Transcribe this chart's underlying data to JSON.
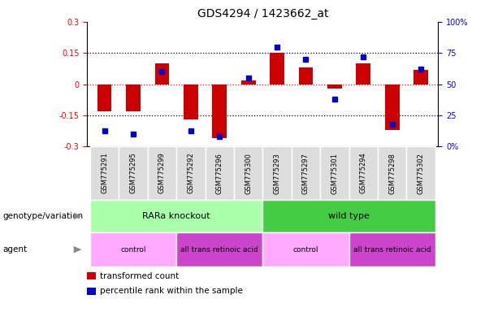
{
  "title": "GDS4294 / 1423662_at",
  "samples": [
    "GSM775291",
    "GSM775295",
    "GSM775299",
    "GSM775292",
    "GSM775296",
    "GSM775300",
    "GSM775293",
    "GSM775297",
    "GSM775301",
    "GSM775294",
    "GSM775298",
    "GSM775302"
  ],
  "bar_values": [
    -0.13,
    -0.13,
    0.1,
    -0.17,
    -0.26,
    0.02,
    0.15,
    0.08,
    -0.02,
    0.1,
    -0.22,
    0.07
  ],
  "dot_percentiles": [
    13,
    10,
    60,
    13,
    8,
    55,
    80,
    70,
    38,
    72,
    18,
    62
  ],
  "ylim_left": [
    -0.3,
    0.3
  ],
  "ylim_right": [
    0,
    100
  ],
  "bar_color": "#CC0000",
  "dot_color": "#0000CC",
  "hline_values": [
    0.15,
    0.0,
    -0.15
  ],
  "genotype_groups": [
    {
      "label": "RARa knockout",
      "start": 0,
      "end": 6,
      "color": "#AAFFAA"
    },
    {
      "label": "wild type",
      "start": 6,
      "end": 12,
      "color": "#44CC44"
    }
  ],
  "agent_groups": [
    {
      "label": "control",
      "start": 0,
      "end": 3,
      "color": "#FFAAFF"
    },
    {
      "label": "all trans retinoic acid",
      "start": 3,
      "end": 6,
      "color": "#CC44CC"
    },
    {
      "label": "control",
      "start": 6,
      "end": 9,
      "color": "#FFAAFF"
    },
    {
      "label": "all trans retinoic acid",
      "start": 9,
      "end": 12,
      "color": "#CC44CC"
    }
  ],
  "legend_items": [
    {
      "label": "transformed count",
      "color": "#CC0000"
    },
    {
      "label": "percentile rank within the sample",
      "color": "#0000CC"
    }
  ],
  "right_ticks": [
    0,
    25,
    50,
    75,
    100
  ],
  "right_tick_labels": [
    "0%",
    "25",
    "50",
    "75",
    "100%"
  ],
  "left_ticks": [
    -0.3,
    -0.15,
    0.0,
    0.15,
    0.3
  ],
  "left_tick_labels": [
    "-0.3",
    "-0.15",
    "0",
    "0.15",
    "0.3"
  ],
  "title_fontsize": 10,
  "tick_fontsize": 7,
  "sample_fontsize": 6,
  "annotation_fontsize": 7.5,
  "legend_fontsize": 7.5,
  "bar_width": 0.5,
  "dot_marker_size": 5
}
